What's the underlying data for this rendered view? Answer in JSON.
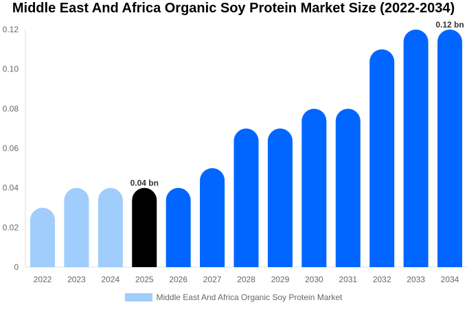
{
  "chart_data": {
    "type": "bar",
    "title": "Middle East And Africa Organic Soy Protein Market Size (2022-2034)",
    "categories": [
      "2022",
      "2023",
      "2024",
      "2025",
      "2026",
      "2027",
      "2028",
      "2029",
      "2030",
      "2031",
      "2032",
      "2033",
      "2034"
    ],
    "series": [
      {
        "name": "Middle East And Africa Organic Soy Protein Market",
        "values": [
          0.03,
          0.04,
          0.04,
          0.04,
          0.04,
          0.05,
          0.07,
          0.07,
          0.08,
          0.08,
          0.11,
          0.12,
          0.12
        ]
      }
    ],
    "bar_colors": [
      "#a0cdfb",
      "#a0cdfb",
      "#a0cdfb",
      "#000000",
      "#0066ff",
      "#0066ff",
      "#0066ff",
      "#0066ff",
      "#0066ff",
      "#0066ff",
      "#0066ff",
      "#0066ff",
      "#0066ff"
    ],
    "data_labels": [
      {
        "index": 3,
        "text": "0.04 bn"
      },
      {
        "index": 12,
        "text": "0.12 bn"
      }
    ],
    "yticks": [
      "0",
      "0.02",
      "0.04",
      "0.06",
      "0.08",
      "0.10",
      "0.12"
    ],
    "ylim": [
      0,
      0.12
    ],
    "grid": false,
    "legend_position": "bottom",
    "legend_color": "#a0cdfb"
  }
}
